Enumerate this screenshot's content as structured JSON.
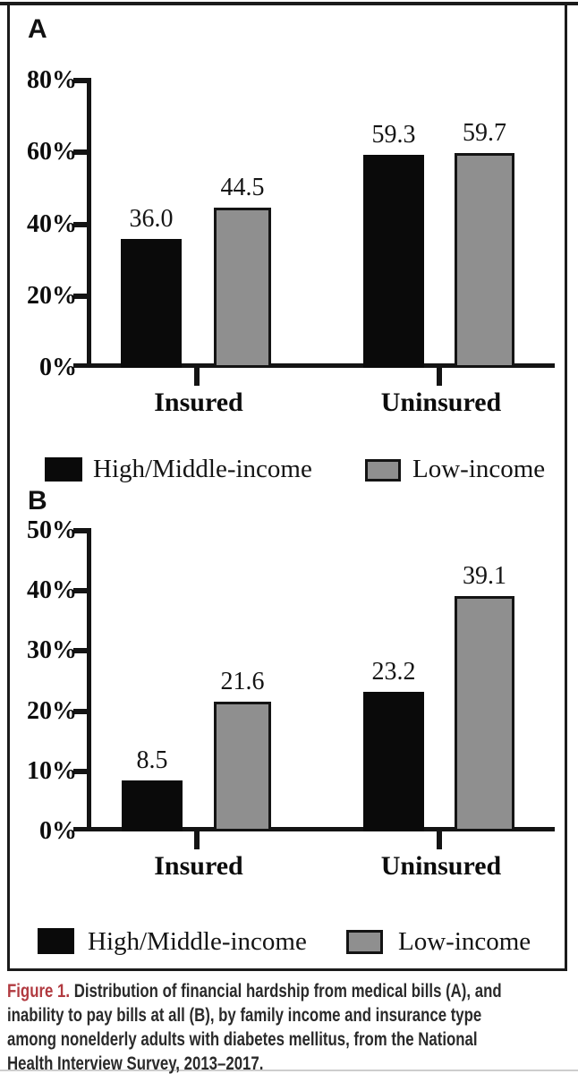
{
  "panels": {
    "a_label": "A",
    "b_label": "B"
  },
  "legend": {
    "series1": "High/Middle-income",
    "series2": "Low-income"
  },
  "caption": {
    "label": "Figure 1.",
    "line1_rest": " Distribution of financial hardship from medical bills (A), and",
    "line2": "inability to pay bills at all (B), by family income and insurance type",
    "line3": "among nonelderly adults with diabetes mellitus, from the National",
    "line4": "Health Interview Survey, 2013–2017."
  },
  "colors": {
    "series_black": "#0a0a0a",
    "series_gray": "#8f8f8f",
    "axis": "#141414",
    "caption_red": "#b13a40",
    "border": "#1b1b1b"
  },
  "chart_data": [
    {
      "panel": "A",
      "type": "bar",
      "title": "Financial hardship from medical bills",
      "categories": [
        "Insured",
        "Uninsured"
      ],
      "series": [
        {
          "name": "High/Middle-income",
          "color": "#0a0a0a",
          "values": [
            36.0,
            59.3
          ]
        },
        {
          "name": "Low-income",
          "color": "#8f8f8f",
          "stroke": "#141414",
          "values": [
            44.5,
            59.7
          ]
        }
      ],
      "value_labels": [
        [
          "36.0",
          "59.3"
        ],
        [
          "44.5",
          "59.7"
        ]
      ],
      "xlabel": "",
      "ylabel": "",
      "ylim": [
        0,
        80
      ],
      "yticks": [
        80,
        60,
        40,
        20,
        0
      ],
      "ytick_labels": [
        "80%",
        "60%",
        "40%",
        "20%",
        "0%"
      ],
      "grid": false,
      "legend_position": "below"
    },
    {
      "panel": "B",
      "type": "bar",
      "title": "Inability to pay bills at all",
      "categories": [
        "Insured",
        "Uninsured"
      ],
      "series": [
        {
          "name": "High/Middle-income",
          "color": "#0a0a0a",
          "values": [
            8.5,
            23.2
          ]
        },
        {
          "name": "Low-income",
          "color": "#8f8f8f",
          "stroke": "#141414",
          "values": [
            21.6,
            39.1
          ]
        }
      ],
      "value_labels": [
        [
          "8.5",
          "23.2"
        ],
        [
          "21.6",
          "39.1"
        ]
      ],
      "xlabel": "",
      "ylabel": "",
      "ylim": [
        0,
        50
      ],
      "yticks": [
        50,
        40,
        30,
        20,
        10,
        0
      ],
      "ytick_labels": [
        "50%",
        "40%",
        "30%",
        "20%",
        "10%",
        "0%"
      ],
      "grid": false,
      "legend_position": "below"
    }
  ]
}
